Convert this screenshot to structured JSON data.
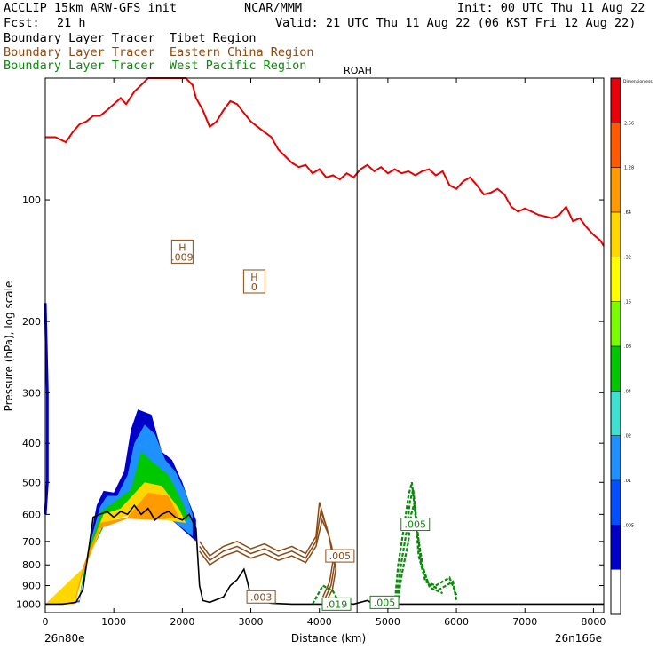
{
  "header": {
    "model": "ACCLIP 15km ARW-GFS init",
    "org": "NCAR/MMM",
    "init": "Init: 00 UTC Thu 11 Aug 22",
    "fcst_label": "Fcst:",
    "fcst_value": "21 h",
    "valid": "Valid: 21 UTC Thu 11 Aug 22 (06 KST Fri 12 Aug 22)",
    "lines": [
      {
        "text": "Boundary Layer Tracer  Tibet Region",
        "color": "#000000"
      },
      {
        "text": "Boundary Layer Tracer  Eastern China Region",
        "color": "#8b4a14"
      },
      {
        "text": "Boundary Layer Tracer  West Pacific Region",
        "color": "#0a8a0a"
      }
    ]
  },
  "chart_data": {
    "type": "area",
    "xlabel": "Distance (km)",
    "ylabel": "Pressure (hPa), log scale",
    "xlim": [
      0,
      8150
    ],
    "ylim": [
      1050,
      50
    ],
    "yscale": "log",
    "xticks": [
      0,
      1000,
      2000,
      3000,
      4000,
      5000,
      6000,
      7000,
      8000
    ],
    "yticks": [
      100,
      200,
      300,
      400,
      500,
      600,
      700,
      800,
      900,
      1000
    ],
    "left_label": "26n80e",
    "right_label": "26n166e",
    "station": {
      "name": "ROAH",
      "x": 4550
    },
    "colorbar": {
      "title": "Dimensionless",
      "levels": [
        "2.56",
        "1.28",
        ".64",
        ".32",
        ".16",
        ".08",
        ".04",
        ".02",
        ".01",
        ".005"
      ],
      "colors": [
        "#e8000b",
        "#ff5a00",
        "#ff9b00",
        "#ffd700",
        "#ffff00",
        "#7cfc00",
        "#00c800",
        "#40e0d0",
        "#1e90ff",
        "#0050ff",
        "#0000c8",
        "#ffffff"
      ]
    },
    "tropopause": {
      "color": "#e60000",
      "points": [
        [
          0,
          70
        ],
        [
          150,
          70
        ],
        [
          300,
          72
        ],
        [
          400,
          68
        ],
        [
          500,
          65
        ],
        [
          600,
          64
        ],
        [
          700,
          62
        ],
        [
          800,
          62
        ],
        [
          900,
          60
        ],
        [
          1000,
          58
        ],
        [
          1100,
          56
        ],
        [
          1180,
          58
        ],
        [
          1300,
          54
        ],
        [
          1400,
          52
        ],
        [
          1500,
          50
        ],
        [
          1550,
          50
        ],
        [
          1650,
          50
        ],
        [
          1750,
          50
        ],
        [
          1850,
          50
        ],
        [
          1950,
          50
        ],
        [
          2050,
          50
        ],
        [
          2150,
          52
        ],
        [
          2200,
          56
        ],
        [
          2300,
          60
        ],
        [
          2400,
          66
        ],
        [
          2500,
          64
        ],
        [
          2600,
          60
        ],
        [
          2700,
          57
        ],
        [
          2800,
          58
        ],
        [
          2900,
          61
        ],
        [
          3000,
          64
        ],
        [
          3100,
          66
        ],
        [
          3200,
          68
        ],
        [
          3300,
          70
        ],
        [
          3400,
          75
        ],
        [
          3500,
          78
        ],
        [
          3600,
          81
        ],
        [
          3700,
          83
        ],
        [
          3800,
          82
        ],
        [
          3900,
          86
        ],
        [
          4000,
          84
        ],
        [
          4100,
          88
        ],
        [
          4200,
          87
        ],
        [
          4300,
          89
        ],
        [
          4400,
          86
        ],
        [
          4500,
          88
        ],
        [
          4600,
          84
        ],
        [
          4700,
          82
        ],
        [
          4800,
          85
        ],
        [
          4900,
          83
        ],
        [
          5000,
          86
        ],
        [
          5100,
          84
        ],
        [
          5200,
          86
        ],
        [
          5300,
          85
        ],
        [
          5400,
          87
        ],
        [
          5500,
          85
        ],
        [
          5600,
          84
        ],
        [
          5700,
          87
        ],
        [
          5800,
          85
        ],
        [
          5900,
          92
        ],
        [
          6000,
          94
        ],
        [
          6100,
          90
        ],
        [
          6200,
          88
        ],
        [
          6300,
          92
        ],
        [
          6400,
          97
        ],
        [
          6500,
          96
        ],
        [
          6600,
          94
        ],
        [
          6700,
          97
        ],
        [
          6800,
          104
        ],
        [
          6900,
          107
        ],
        [
          7000,
          105
        ],
        [
          7100,
          107
        ],
        [
          7200,
          109
        ],
        [
          7300,
          110
        ],
        [
          7400,
          111
        ],
        [
          7500,
          109
        ],
        [
          7600,
          104
        ],
        [
          7700,
          113
        ],
        [
          7800,
          111
        ],
        [
          7900,
          117
        ],
        [
          8000,
          122
        ],
        [
          8100,
          126
        ],
        [
          8150,
          130
        ]
      ]
    },
    "terrain": {
      "points": [
        [
          0,
          1000
        ],
        [
          250,
          1000
        ],
        [
          450,
          990
        ],
        [
          550,
          920
        ],
        [
          650,
          700
        ],
        [
          700,
          610
        ],
        [
          800,
          600
        ],
        [
          900,
          590
        ],
        [
          1000,
          610
        ],
        [
          1100,
          590
        ],
        [
          1200,
          600
        ],
        [
          1300,
          570
        ],
        [
          1400,
          600
        ],
        [
          1500,
          580
        ],
        [
          1600,
          620
        ],
        [
          1700,
          600
        ],
        [
          1800,
          590
        ],
        [
          1900,
          610
        ],
        [
          2000,
          620
        ],
        [
          2100,
          600
        ],
        [
          2200,
          650
        ],
        [
          2250,
          900
        ],
        [
          2300,
          980
        ],
        [
          2400,
          990
        ],
        [
          2600,
          960
        ],
        [
          2700,
          900
        ],
        [
          2800,
          870
        ],
        [
          2900,
          820
        ],
        [
          2950,
          880
        ],
        [
          3000,
          960
        ],
        [
          3100,
          980
        ],
        [
          3300,
          995
        ],
        [
          3600,
          1000
        ],
        [
          3900,
          1000
        ],
        [
          4200,
          1000
        ],
        [
          4400,
          995
        ],
        [
          4500,
          1000
        ],
        [
          4700,
          980
        ],
        [
          4800,
          1000
        ],
        [
          5000,
          1000
        ],
        [
          6000,
          1000
        ],
        [
          8150,
          1000
        ]
      ]
    },
    "tibet_tracer": [
      {
        "level": ".01",
        "color": "#0000c8",
        "points": [
          [
            0,
            1000
          ],
          [
            500,
            990
          ],
          [
            650,
            700
          ],
          [
            750,
            570
          ],
          [
            850,
            525
          ],
          [
            1000,
            530
          ],
          [
            1150,
            470
          ],
          [
            1250,
            370
          ],
          [
            1350,
            330
          ],
          [
            1550,
            340
          ],
          [
            1700,
            420
          ],
          [
            1850,
            440
          ],
          [
            2000,
            500
          ],
          [
            2100,
            560
          ],
          [
            2200,
            620
          ],
          [
            2200,
            700
          ],
          [
            1800,
            610
          ],
          [
            1300,
            580
          ],
          [
            900,
            600
          ],
          [
            650,
            720
          ],
          [
            500,
            980
          ],
          [
            250,
            1000
          ]
        ]
      },
      {
        "level": ".02",
        "color": "#1e90ff",
        "points": [
          [
            0,
            1000
          ],
          [
            500,
            990
          ],
          [
            650,
            710
          ],
          [
            800,
            575
          ],
          [
            900,
            540
          ],
          [
            1050,
            540
          ],
          [
            1200,
            480
          ],
          [
            1300,
            400
          ],
          [
            1450,
            360
          ],
          [
            1600,
            380
          ],
          [
            1750,
            440
          ],
          [
            1900,
            470
          ],
          [
            2050,
            530
          ],
          [
            2150,
            600
          ],
          [
            2150,
            680
          ],
          [
            1800,
            610
          ],
          [
            1300,
            590
          ],
          [
            900,
            610
          ],
          [
            650,
            740
          ],
          [
            500,
            985
          ]
        ]
      },
      {
        "level": ".16",
        "color": "#00c800",
        "points": [
          [
            0,
            1000
          ],
          [
            480,
            990
          ],
          [
            620,
            740
          ],
          [
            820,
            590
          ],
          [
            1000,
            560
          ],
          [
            1250,
            520
          ],
          [
            1400,
            420
          ],
          [
            1600,
            450
          ],
          [
            1800,
            480
          ],
          [
            2000,
            560
          ],
          [
            2100,
            620
          ],
          [
            1700,
            610
          ],
          [
            1300,
            600
          ],
          [
            900,
            620
          ],
          [
            640,
            760
          ],
          [
            480,
            990
          ]
        ]
      },
      {
        "level": ".32",
        "color": "#ffd700",
        "points": [
          [
            0,
            1000
          ],
          [
            450,
            990
          ],
          [
            600,
            770
          ],
          [
            850,
            600
          ],
          [
            1100,
            580
          ],
          [
            1450,
            500
          ],
          [
            1700,
            510
          ],
          [
            1950,
            580
          ],
          [
            2050,
            630
          ],
          [
            1600,
            615
          ],
          [
            1200,
            605
          ],
          [
            850,
            630
          ],
          [
            600,
            800
          ]
        ]
      },
      {
        "level": ".64",
        "color": "#ff9b00",
        "points": [
          [
            0,
            1000
          ],
          [
            420,
            995
          ],
          [
            560,
            800
          ],
          [
            800,
            630
          ],
          [
            1200,
            610
          ],
          [
            1500,
            530
          ],
          [
            1800,
            540
          ],
          [
            1950,
            610
          ],
          [
            1600,
            620
          ],
          [
            1200,
            615
          ],
          [
            800,
            650
          ],
          [
            560,
            830
          ],
          [
            420,
            1000
          ]
        ]
      }
    ],
    "tibet_left_edge": {
      "color": "#0000c8",
      "points": [
        [
          0,
          180
        ],
        [
          30,
          300
        ],
        [
          30,
          500
        ],
        [
          0,
          600
        ]
      ]
    },
    "eastern_tracer": {
      "color": "#8b4a14",
      "contours": [
        [
          [
            2250,
            700
          ],
          [
            2400,
            760
          ],
          [
            2600,
            720
          ],
          [
            2800,
            700
          ],
          [
            3000,
            730
          ],
          [
            3200,
            710
          ],
          [
            3400,
            740
          ],
          [
            3600,
            720
          ],
          [
            3800,
            750
          ],
          [
            3950,
            680
          ],
          [
            4000,
            560
          ],
          [
            4050,
            600
          ],
          [
            4150,
            690
          ],
          [
            4200,
            780
          ],
          [
            4150,
            880
          ],
          [
            4050,
            960
          ]
        ],
        [
          [
            2250,
            720
          ],
          [
            2400,
            780
          ],
          [
            2600,
            740
          ],
          [
            2800,
            720
          ],
          [
            3000,
            750
          ],
          [
            3200,
            730
          ],
          [
            3400,
            760
          ],
          [
            3600,
            740
          ],
          [
            3800,
            770
          ],
          [
            3950,
            700
          ],
          [
            4020,
            590
          ],
          [
            4100,
            640
          ],
          [
            4180,
            720
          ],
          [
            4220,
            800
          ],
          [
            4170,
            900
          ],
          [
            4080,
            970
          ]
        ],
        [
          [
            2250,
            740
          ],
          [
            2400,
            800
          ],
          [
            2600,
            760
          ],
          [
            2800,
            740
          ],
          [
            3000,
            770
          ],
          [
            3200,
            750
          ],
          [
            3400,
            780
          ],
          [
            3600,
            760
          ],
          [
            3800,
            790
          ],
          [
            3950,
            720
          ],
          [
            4040,
            620
          ],
          [
            4130,
            670
          ],
          [
            4200,
            750
          ],
          [
            4240,
            820
          ],
          [
            4190,
            920
          ],
          [
            4110,
            980
          ]
        ]
      ],
      "labels": [
        {
          "text": ".005",
          "x": 4300,
          "y": 760
        },
        {
          "text": ".003",
          "x": 3150,
          "y": 960
        }
      ]
    },
    "west_pacific_tracer": {
      "color": "#0a8a0a",
      "contours": [
        [
          [
            3900,
            1000
          ],
          [
            4050,
            900
          ],
          [
            4200,
            930
          ],
          [
            4300,
            1000
          ]
        ],
        [
          [
            5100,
            1000
          ],
          [
            5150,
            800
          ],
          [
            5250,
            620
          ],
          [
            5300,
            540
          ],
          [
            5350,
            500
          ],
          [
            5400,
            600
          ],
          [
            5450,
            760
          ],
          [
            5550,
            880
          ],
          [
            5700,
            900
          ],
          [
            5900,
            860
          ],
          [
            6000,
            950
          ]
        ],
        [
          [
            5120,
            1000
          ],
          [
            5180,
            820
          ],
          [
            5280,
            650
          ],
          [
            5320,
            560
          ],
          [
            5370,
            520
          ],
          [
            5420,
            630
          ],
          [
            5480,
            780
          ],
          [
            5580,
            890
          ],
          [
            5750,
            920
          ],
          [
            5950,
            880
          ],
          [
            6000,
            980
          ]
        ],
        [
          [
            5140,
            1000
          ],
          [
            5200,
            850
          ],
          [
            5300,
            700
          ],
          [
            5340,
            600
          ],
          [
            5390,
            560
          ],
          [
            5440,
            680
          ],
          [
            5510,
            810
          ],
          [
            5610,
            910
          ],
          [
            5800,
            940
          ]
        ]
      ],
      "labels": [
        {
          "text": ".005",
          "x": 5400,
          "y": 635
        },
        {
          "text": ".019",
          "x": 4250,
          "y": 1000
        },
        {
          "text": ".005",
          "x": 4950,
          "y": 990
        }
      ]
    },
    "annotations": [
      {
        "text": "H",
        "value": ".009",
        "x": 2000,
        "y": 135,
        "color": "#8b4a14"
      },
      {
        "text": "H",
        "value": "0",
        "x": 3050,
        "y": 160,
        "color": "#8b4a14"
      }
    ]
  }
}
